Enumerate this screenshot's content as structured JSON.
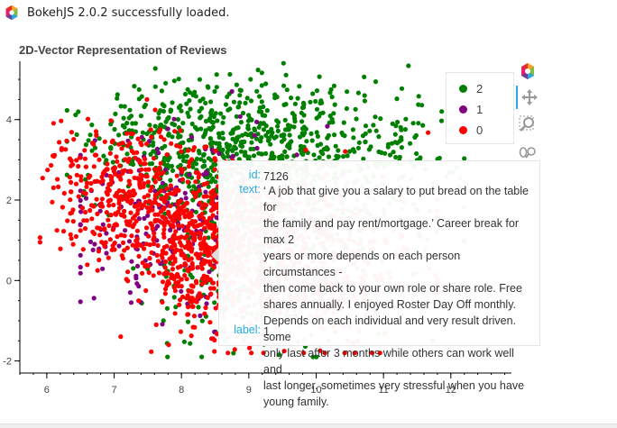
{
  "banner": {
    "text": "BokehJS 2.0.2 successfully loaded.",
    "logo_icon": "bokeh-logo-icon"
  },
  "chart_data": {
    "type": "scatter",
    "title": "2D-Vector Representation of Reviews",
    "xlabel": "",
    "ylabel": "",
    "xlim": [
      5.6,
      12.9
    ],
    "ylim": [
      -2.3,
      5.45
    ],
    "x_ticks": [
      "6",
      "7",
      "8",
      "9",
      "10",
      "11",
      "12"
    ],
    "y_ticks": [
      "-2",
      "0",
      "2",
      "4"
    ],
    "grid": false,
    "legend_position": "top-right",
    "series": [
      {
        "name": "2",
        "color": "#008000",
        "n_points": 1300,
        "x_range": [
          6.3,
          12.2
        ],
        "y_range": [
          -1.9,
          5.4
        ]
      },
      {
        "name": "1",
        "color": "#800080",
        "n_points": 350,
        "x_range": [
          6.5,
          11.5
        ],
        "y_range": [
          -1.5,
          4.7
        ]
      },
      {
        "name": "0",
        "color": "#ff0000",
        "n_points": 1250,
        "x_range": [
          5.9,
          11.8
        ],
        "y_range": [
          -1.8,
          4.5
        ]
      }
    ]
  },
  "legend": {
    "items": [
      {
        "label": "2",
        "color": "#008000"
      },
      {
        "label": "1",
        "color": "#800080"
      },
      {
        "label": "0",
        "color": "#ff0000"
      }
    ]
  },
  "toolbar": {
    "tools": [
      {
        "name": "bokeh-logo-icon"
      },
      {
        "name": "pan-icon"
      },
      {
        "name": "box-zoom-icon"
      },
      {
        "name": "wheel-zoom-icon"
      }
    ]
  },
  "tooltip": {
    "id_key": "id:",
    "id_value": "7126",
    "text_key": "text:",
    "text_lines": [
      "‘ A job that give you a salary to put bread on the table for",
      "the family and pay rent/mortgage.’ Career break for max 2",
      "years or more depends on each person circumstances -",
      "then come back to your own role or share role. Free",
      "shares annually. I enjoyed Roster Day Off monthly.",
      "Depends on each individual and very result driven. some",
      "only last after 3 months while others can work well and",
      "last longer. sometimes very stressful when you have",
      "young family."
    ],
    "label_key": "label:",
    "label_value": "1"
  }
}
